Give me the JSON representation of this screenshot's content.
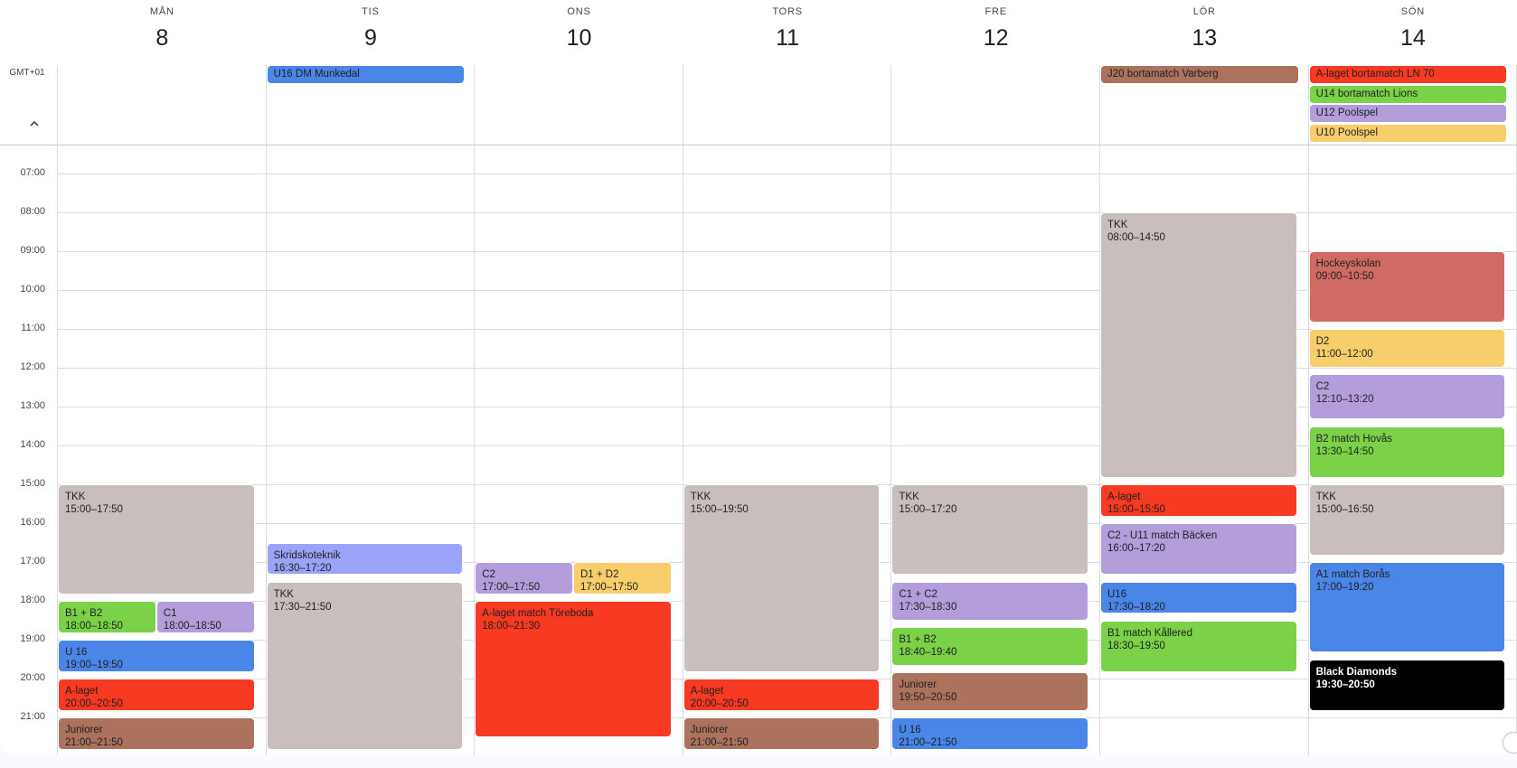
{
  "timezone": "GMT+01",
  "collapse_icon": "chevron-up-icon",
  "days": [
    {
      "dow": "MÅN",
      "date": "8"
    },
    {
      "dow": "TIS",
      "date": "9"
    },
    {
      "dow": "ONS",
      "date": "10"
    },
    {
      "dow": "TORS",
      "date": "11"
    },
    {
      "dow": "FRE",
      "date": "12"
    },
    {
      "dow": "LÖR",
      "date": "13"
    },
    {
      "dow": "SÖN",
      "date": "14"
    }
  ],
  "hours": [
    "07:00",
    "08:00",
    "09:00",
    "10:00",
    "11:00",
    "12:00",
    "13:00",
    "14:00",
    "15:00",
    "16:00",
    "17:00",
    "18:00",
    "19:00",
    "20:00",
    "21:00"
  ],
  "colors": {
    "gray": "#c9bebe",
    "green": "#7bd148",
    "lavender": "#b39ddb",
    "periwinkle": "#9aa3f7",
    "blue": "#4a86e8",
    "red": "#f83a22",
    "brown": "#ac725e",
    "yellow": "#f7ce6b",
    "salmon": "#d06b64",
    "black": "#000000"
  },
  "allday": [
    {
      "day": 1,
      "row": 0,
      "title": "U16 DM Munkedal",
      "color": "blue"
    },
    {
      "day": 5,
      "row": 0,
      "title": "J20 bortamatch Varberg",
      "color": "brown"
    },
    {
      "day": 6,
      "row": 0,
      "title": "A-laget bortamatch LN 70",
      "color": "red"
    },
    {
      "day": 6,
      "row": 1,
      "title": "U14 bortamatch Lions",
      "color": "green"
    },
    {
      "day": 6,
      "row": 2,
      "title": "U12 Poolspel",
      "color": "lavender"
    },
    {
      "day": 6,
      "row": 3,
      "title": "U10 Poolspel",
      "color": "yellow"
    }
  ],
  "events": [
    {
      "day": 0,
      "title": "TKK",
      "time": "15:00–17:50",
      "start": "15:00",
      "end": "17:50",
      "color": "gray"
    },
    {
      "day": 0,
      "title": "B1 + B2",
      "time": "18:00–18:50",
      "start": "18:00",
      "end": "18:50",
      "color": "green",
      "col": 0,
      "cols": 2
    },
    {
      "day": 0,
      "title": "C1",
      "time": "18:00–18:50",
      "start": "18:00",
      "end": "18:50",
      "color": "lavender",
      "col": 1,
      "cols": 2
    },
    {
      "day": 0,
      "title": "U 16",
      "time": "19:00–19:50",
      "start": "19:00",
      "end": "19:50",
      "color": "blue"
    },
    {
      "day": 0,
      "title": "A-laget",
      "time": "20:00–20:50",
      "start": "20:00",
      "end": "20:50",
      "color": "red"
    },
    {
      "day": 0,
      "title": "Juniorer",
      "time": "21:00–21:50",
      "start": "21:00",
      "end": "21:50",
      "color": "brown"
    },
    {
      "day": 1,
      "title": "Skridskoteknik",
      "time": "16:30–17:20",
      "start": "16:30",
      "end": "17:20",
      "color": "periwinkle"
    },
    {
      "day": 1,
      "title": "TKK",
      "time": "17:30–21:50",
      "start": "17:30",
      "end": "21:50",
      "color": "gray"
    },
    {
      "day": 2,
      "title": "C2",
      "time": "17:00–17:50",
      "start": "17:00",
      "end": "17:50",
      "color": "lavender",
      "col": 0,
      "cols": 2
    },
    {
      "day": 2,
      "title": "D1 + D2",
      "time": "17:00–17:50",
      "start": "17:00",
      "end": "17:50",
      "color": "yellow",
      "col": 1,
      "cols": 2
    },
    {
      "day": 2,
      "title": "A-laget match Töreboda",
      "time": "18:00–21:30",
      "start": "18:00",
      "end": "21:30",
      "color": "red"
    },
    {
      "day": 3,
      "title": "TKK",
      "time": "15:00–19:50",
      "start": "15:00",
      "end": "19:50",
      "color": "gray"
    },
    {
      "day": 3,
      "title": "A-laget",
      "time": "20:00–20:50",
      "start": "20:00",
      "end": "20:50",
      "color": "red"
    },
    {
      "day": 3,
      "title": "Juniorer",
      "time": "21:00–21:50",
      "start": "21:00",
      "end": "21:50",
      "color": "brown"
    },
    {
      "day": 4,
      "title": "TKK",
      "time": "15:00–17:20",
      "start": "15:00",
      "end": "17:20",
      "color": "gray"
    },
    {
      "day": 4,
      "title": "C1 + C2",
      "time": "17:30–18:30",
      "start": "17:30",
      "end": "18:30",
      "color": "lavender"
    },
    {
      "day": 4,
      "title": "B1 + B2",
      "time": "18:40–19:40",
      "start": "18:40",
      "end": "19:40",
      "color": "green"
    },
    {
      "day": 4,
      "title": "Juniorer",
      "time": "19:50–20:50",
      "start": "19:50",
      "end": "20:50",
      "color": "brown"
    },
    {
      "day": 4,
      "title": "U 16",
      "time": "21:00–21:50",
      "start": "21:00",
      "end": "21:50",
      "color": "blue"
    },
    {
      "day": 5,
      "title": "TKK",
      "time": "08:00–14:50",
      "start": "08:00",
      "end": "14:50",
      "color": "gray"
    },
    {
      "day": 5,
      "title": "A-laget",
      "time": "15:00–15:50",
      "start": "15:00",
      "end": "15:50",
      "color": "red"
    },
    {
      "day": 5,
      "title": "C2 - U11 match Bäcken",
      "time": "16:00–17:20",
      "start": "16:00",
      "end": "17:20",
      "color": "lavender"
    },
    {
      "day": 5,
      "title": "U16",
      "time": "17:30–18:20",
      "start": "17:30",
      "end": "18:20",
      "color": "blue"
    },
    {
      "day": 5,
      "title": "B1 match Kållered",
      "time": "18:30–19:50",
      "start": "18:30",
      "end": "19:50",
      "color": "green"
    },
    {
      "day": 6,
      "title": "Hockeyskolan",
      "time": "09:00–10:50",
      "start": "09:00",
      "end": "10:50",
      "color": "salmon"
    },
    {
      "day": 6,
      "title": "D2",
      "time": "11:00–12:00",
      "start": "11:00",
      "end": "12:00",
      "color": "yellow"
    },
    {
      "day": 6,
      "title": "C2",
      "time": "12:10–13:20",
      "start": "12:10",
      "end": "13:20",
      "color": "lavender"
    },
    {
      "day": 6,
      "title": "B2 match Hovås",
      "time": "13:30–14:50",
      "start": "13:30",
      "end": "14:50",
      "color": "green"
    },
    {
      "day": 6,
      "title": "TKK",
      "time": "15:00–16:50",
      "start": "15:00",
      "end": "16:50",
      "color": "gray"
    },
    {
      "day": 6,
      "title": "A1 match Borås",
      "time": "17:00–19:20",
      "start": "17:00",
      "end": "19:20",
      "color": "blue"
    },
    {
      "day": 6,
      "title": "Black Diamonds",
      "time": "19:30–20:50",
      "start": "19:30",
      "end": "20:50",
      "color": "black",
      "text_color": "#ffffff"
    }
  ]
}
